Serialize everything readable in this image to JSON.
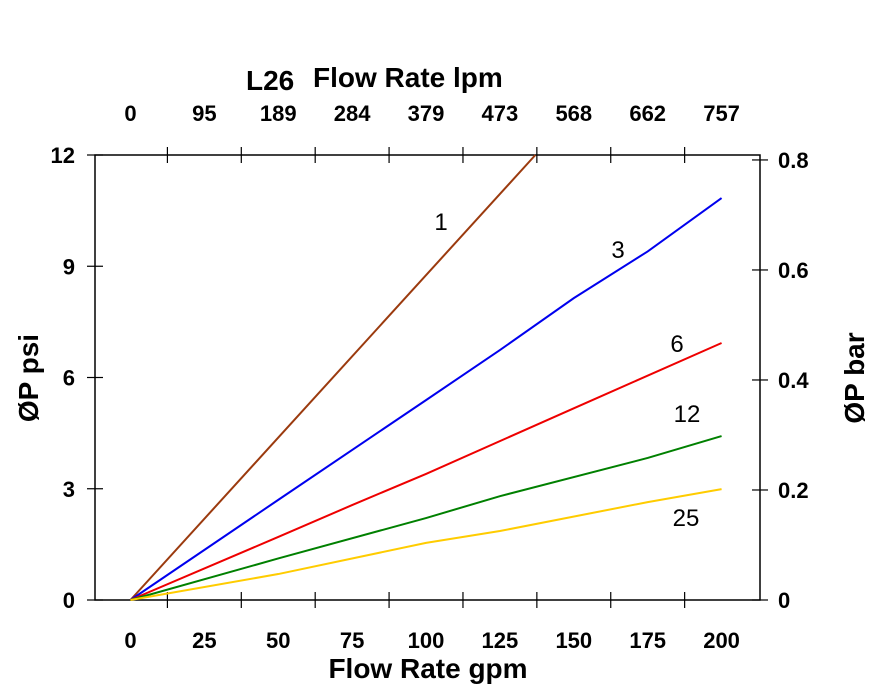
{
  "chart_data": {
    "type": "line",
    "title": "L26",
    "xlabel": "Flow Rate gpm",
    "x2label": "Flow Rate lpm",
    "ylabel": "ØP psi",
    "y2label": "ØP bar",
    "xlim": [
      -12,
      213
    ],
    "ylim": [
      0,
      12
    ],
    "y2lim": [
      0,
      0.809
    ],
    "xticks": [
      0,
      25,
      50,
      75,
      100,
      125,
      150,
      175,
      200
    ],
    "x2ticklabels": [
      "0",
      "95",
      "189",
      "284",
      "379",
      "473",
      "568",
      "662",
      "757"
    ],
    "yticks": [
      0,
      3,
      6,
      9,
      12
    ],
    "y2ticks": [
      "0",
      "0.2",
      "0.4",
      "0.6",
      "0.8"
    ],
    "grid": false,
    "series": [
      {
        "name": "1",
        "color": "#9b3a0e",
        "x": [
          0,
          137
        ],
        "y": [
          0,
          12
        ]
      },
      {
        "name": "3",
        "color": "#0000ee",
        "x": [
          0,
          50,
          100,
          125,
          150,
          175,
          200
        ],
        "y": [
          0,
          2.7,
          5.39,
          6.74,
          8.14,
          9.4,
          10.84
        ]
      },
      {
        "name": "6",
        "color": "#ee0000",
        "x": [
          0,
          50,
          75,
          100,
          150,
          200
        ],
        "y": [
          0,
          1.7,
          2.56,
          3.4,
          5.17,
          6.93
        ]
      },
      {
        "name": "12",
        "color": "#008000",
        "x": [
          0,
          50,
          100,
          125,
          175,
          200
        ],
        "y": [
          0,
          1.12,
          2.21,
          2.8,
          3.83,
          4.42
        ]
      },
      {
        "name": "25",
        "color": "#ffcc00",
        "x": [
          0,
          50,
          100,
          125,
          175,
          200
        ],
        "y": [
          0,
          0.7,
          1.54,
          1.86,
          2.64,
          2.99
        ]
      }
    ]
  }
}
